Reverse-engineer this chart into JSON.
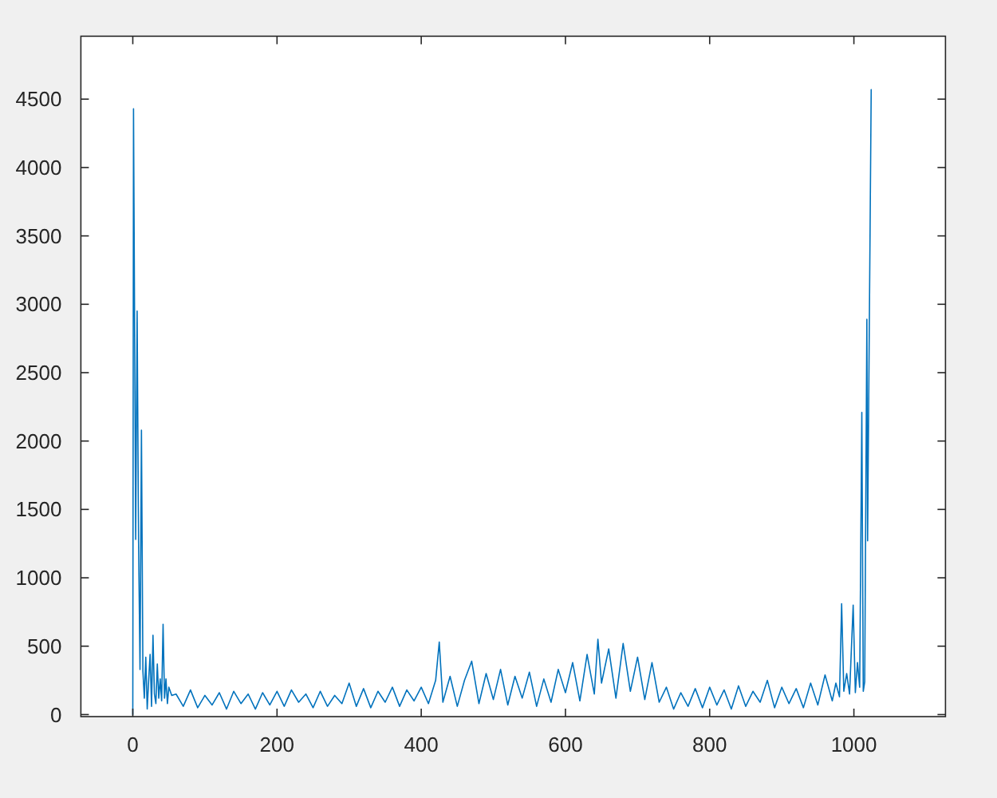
{
  "chart_data": {
    "type": "line",
    "color": "#0072bd",
    "x": [
      0,
      1,
      4,
      6,
      8,
      10,
      12,
      14,
      16,
      18,
      20,
      22,
      24,
      26,
      28,
      30,
      32,
      34,
      36,
      38,
      40,
      42,
      44,
      46,
      48,
      50,
      54,
      60,
      70,
      80,
      90,
      100,
      110,
      120,
      130,
      140,
      150,
      160,
      170,
      180,
      190,
      200,
      210,
      220,
      230,
      240,
      250,
      260,
      270,
      280,
      290,
      300,
      310,
      320,
      330,
      340,
      350,
      360,
      370,
      380,
      390,
      400,
      410,
      420,
      425,
      430,
      440,
      450,
      460,
      470,
      480,
      490,
      500,
      510,
      520,
      530,
      540,
      550,
      560,
      570,
      580,
      590,
      600,
      610,
      620,
      630,
      640,
      645,
      650,
      660,
      670,
      680,
      690,
      700,
      710,
      720,
      730,
      740,
      750,
      760,
      770,
      780,
      790,
      800,
      810,
      820,
      830,
      840,
      850,
      860,
      870,
      880,
      890,
      900,
      910,
      920,
      930,
      940,
      950,
      960,
      970,
      975,
      980,
      983,
      986,
      990,
      994,
      999,
      1002,
      1005,
      1008,
      1011,
      1013,
      1015,
      1018,
      1019,
      1024
    ],
    "values": [
      0,
      4430,
      1280,
      2950,
      1270,
      330,
      2080,
      320,
      120,
      420,
      40,
      250,
      440,
      60,
      580,
      150,
      80,
      370,
      120,
      260,
      100,
      660,
      120,
      260,
      80,
      200,
      140,
      150,
      60,
      180,
      50,
      140,
      70,
      160,
      40,
      170,
      80,
      150,
      40,
      160,
      70,
      170,
      60,
      180,
      90,
      150,
      50,
      170,
      60,
      140,
      80,
      230,
      60,
      190,
      50,
      170,
      90,
      200,
      60,
      180,
      100,
      200,
      80,
      250,
      530,
      90,
      280,
      60,
      250,
      390,
      80,
      300,
      110,
      330,
      70,
      280,
      120,
      310,
      60,
      260,
      90,
      330,
      160,
      380,
      100,
      440,
      150,
      550,
      230,
      480,
      120,
      520,
      170,
      420,
      110,
      380,
      90,
      200,
      40,
      160,
      60,
      190,
      50,
      200,
      70,
      180,
      40,
      210,
      60,
      170,
      90,
      250,
      50,
      200,
      80,
      190,
      50,
      230,
      70,
      290,
      100,
      230,
      130,
      810,
      170,
      300,
      150,
      800,
      160,
      380,
      200,
      2210,
      170,
      240,
      2890,
      1270,
      4570
    ],
    "xlim": [
      -72,
      1127
    ],
    "ylim": [
      -15,
      4960
    ],
    "xticks": [
      0,
      200,
      400,
      600,
      800,
      1000
    ],
    "yticks": [
      0,
      500,
      1000,
      1500,
      2000,
      2500,
      3000,
      3500,
      4000,
      4500
    ]
  }
}
